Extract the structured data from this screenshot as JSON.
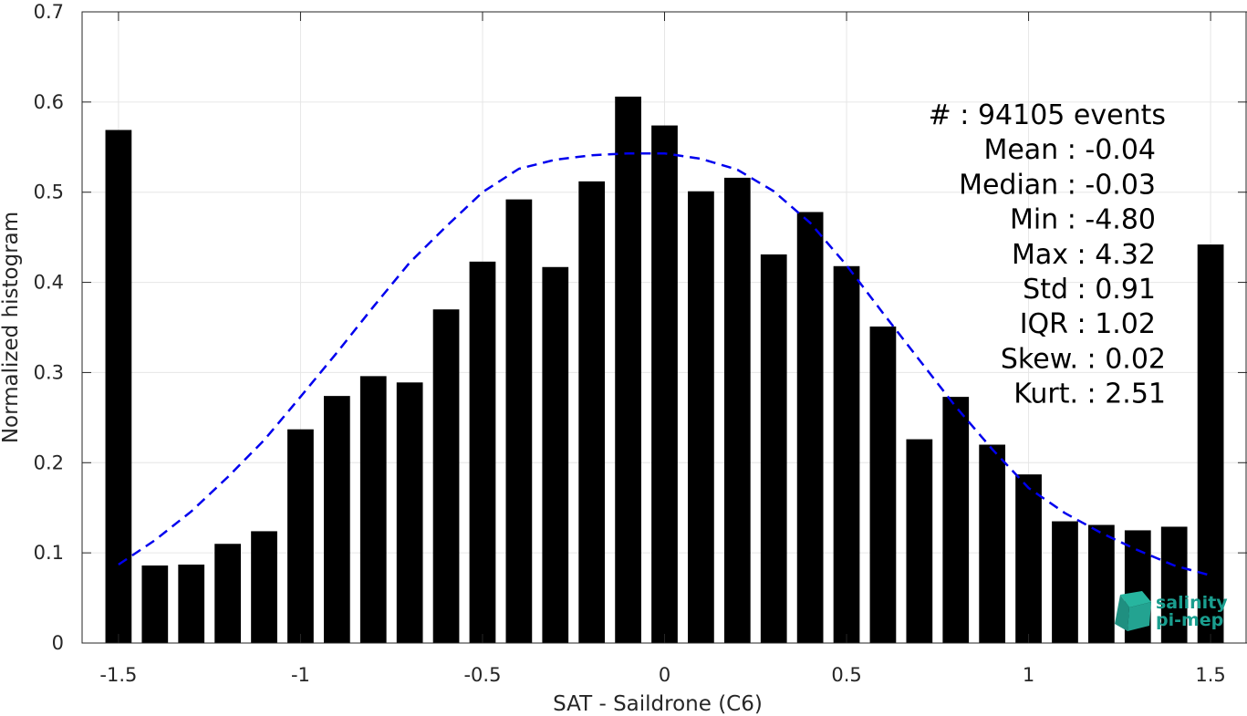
{
  "chart_data": {
    "type": "bar",
    "xlabel": "SAT - Saildrone (C6)",
    "ylabel": "Normalized histogram",
    "xlim": [
      -1.6,
      1.6
    ],
    "ylim": [
      0,
      0.7
    ],
    "xticks": [
      "-1.5",
      "-1",
      "-0.5",
      "0",
      "0.5",
      "1",
      "1.5"
    ],
    "yticks": [
      "0",
      "0.1",
      "0.2",
      "0.3",
      "0.4",
      "0.5",
      "0.6",
      "0.7"
    ],
    "grid": true,
    "bar_color": "#000000",
    "x": [
      -1.5,
      -1.4,
      -1.3,
      -1.2,
      -1.1,
      -1.0,
      -0.9,
      -0.8,
      -0.7,
      -0.6,
      -0.5,
      -0.4,
      -0.3,
      -0.2,
      -0.1,
      0.0,
      0.1,
      0.2,
      0.3,
      0.4,
      0.5,
      0.6,
      0.7,
      0.8,
      0.9,
      1.0,
      1.1,
      1.2,
      1.3,
      1.4,
      1.5
    ],
    "values": [
      0.569,
      0.086,
      0.087,
      0.11,
      0.124,
      0.237,
      0.274,
      0.296,
      0.289,
      0.37,
      0.423,
      0.492,
      0.417,
      0.512,
      0.606,
      0.574,
      0.501,
      0.516,
      0.431,
      0.478,
      0.418,
      0.351,
      0.226,
      0.273,
      0.22,
      0.187,
      0.135,
      0.131,
      0.125,
      0.129,
      0.442
    ],
    "fit_curve": {
      "style": "dashed",
      "color": "#0000ee",
      "x": [
        -1.5,
        -1.4,
        -1.3,
        -1.2,
        -1.1,
        -1.0,
        -0.9,
        -0.8,
        -0.7,
        -0.6,
        -0.5,
        -0.4,
        -0.3,
        -0.2,
        -0.1,
        0.0,
        0.1,
        0.2,
        0.3,
        0.4,
        0.5,
        0.6,
        0.7,
        0.8,
        0.9,
        1.0,
        1.1,
        1.2,
        1.3,
        1.4,
        1.5
      ],
      "y": [
        0.087,
        0.114,
        0.146,
        0.184,
        0.225,
        0.273,
        0.322,
        0.373,
        0.422,
        0.462,
        0.5,
        0.526,
        0.536,
        0.541,
        0.543,
        0.543,
        0.537,
        0.525,
        0.501,
        0.466,
        0.419,
        0.366,
        0.314,
        0.262,
        0.215,
        0.172,
        0.144,
        0.122,
        0.103,
        0.086,
        0.075
      ]
    },
    "stats": [
      "#  : 94105 events",
      "Mean : -0.04",
      "Median : -0.03",
      "Min : -4.80",
      "Max : 4.32",
      "Std : 0.91",
      "IQR : 1.02",
      "Skew. : 0.02",
      "Kurt. : 2.51"
    ],
    "logo_text": [
      "salinity",
      "pi-mep"
    ]
  }
}
